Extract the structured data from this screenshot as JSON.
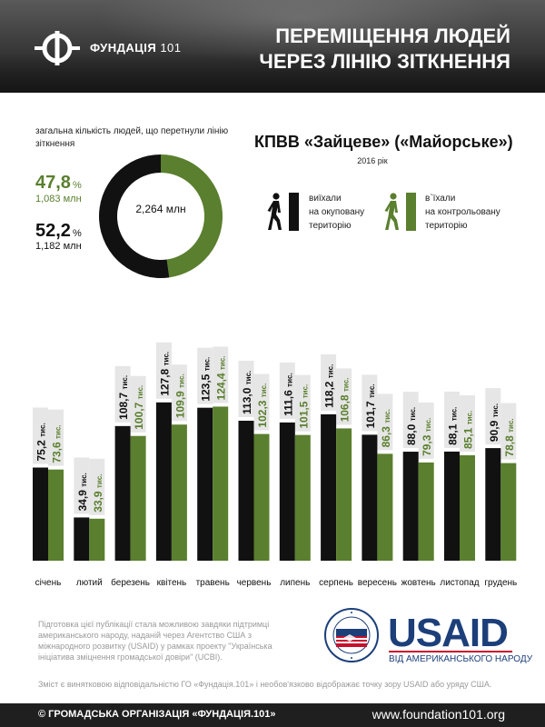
{
  "header": {
    "brand_name": "ФУНДАЦІЯ",
    "brand_number": "101",
    "title_line1": "ПЕРЕМІЩЕННЯ ЛЮДЕЙ",
    "title_line2": "ЧЕРЕЗ ЛІНІЮ ЗІТКНЕННЯ"
  },
  "summary": {
    "label": "загальна кількість людей, що перетнули лінію зіткнення",
    "green_pct": "47,8",
    "green_mln": "1,083 млн",
    "black_pct": "52,2",
    "black_mln": "1,182 млн",
    "pct_sign": "%",
    "total": "2,264 млн"
  },
  "checkpoint": {
    "name": "КПВВ «Зайцеве» («Майорське»)",
    "year": "2016 рік"
  },
  "legend": {
    "black": [
      "виїхали",
      "на окуповану",
      "територію"
    ],
    "green": [
      "в`їхали",
      "на контрольовану",
      "територію"
    ]
  },
  "colors": {
    "green": "#5a7f2e",
    "black": "#111111",
    "label_bg": "#e6e6e6",
    "navy": "#1c3f7a",
    "red": "#c8102e"
  },
  "chart_data": {
    "type": "bar",
    "categories": [
      "січень",
      "лютий",
      "березень",
      "квітень",
      "травень",
      "червень",
      "липень",
      "серпень",
      "вересень",
      "жовтень",
      "листопад",
      "грудень"
    ],
    "series": [
      {
        "name": "виїхали на окуповану територію",
        "color": "#111111",
        "values": [
          75.2,
          34.9,
          108.7,
          127.8,
          123.5,
          113.0,
          111.6,
          118.2,
          101.7,
          88.0,
          88.1,
          90.9
        ],
        "labels": [
          "75,2",
          "34,9",
          "108,7",
          "127,8",
          "123,5",
          "113,0",
          "111,6",
          "118,2",
          "101,7",
          "88,0",
          "88,1",
          "90,9"
        ]
      },
      {
        "name": "в`їхали на контрольовану територію",
        "color": "#5a7f2e",
        "values": [
          73.6,
          33.9,
          100.7,
          109.9,
          124.4,
          102.3,
          101.5,
          106.8,
          86.3,
          79.3,
          85.1,
          78.8
        ],
        "labels": [
          "73,6",
          "33,9",
          "100,7",
          "109,9",
          "124,4",
          "102,3",
          "101,5",
          "106,8",
          "86,3",
          "79,3",
          "85,1",
          "78,8"
        ]
      }
    ],
    "unit": "тис.",
    "ylim": [
      0,
      130
    ]
  },
  "donut_data": {
    "type": "pie",
    "categories": [
      "в`їхали на контрольовану територію",
      "виїхали на окуповану територію"
    ],
    "values": [
      47.8,
      52.2
    ]
  },
  "footer": {
    "credit": "Підготовка цієї публікації стала можливою завдяки підтримці американського народу, наданій через Агентство США з міжнародного розвитку (USAID) у рамках проекту \"Українська ініціатива зміцнення громадської довіри\" (UCBI).",
    "usaid_name": "USAID",
    "usaid_tagline": "ВІД АМЕРИКАНСЬКОГО НАРОДУ",
    "disclaimer": "Зміст є винятковою відповідальністю ГО «Фундація.101» і необов'язково відображає точку зору USAID або уряду США.",
    "copyright": "© ГРОМАДСЬКА ОРГАНІЗАЦІЯ «ФУНДАЦІЯ.101»",
    "website": "www.foundation101.org"
  }
}
